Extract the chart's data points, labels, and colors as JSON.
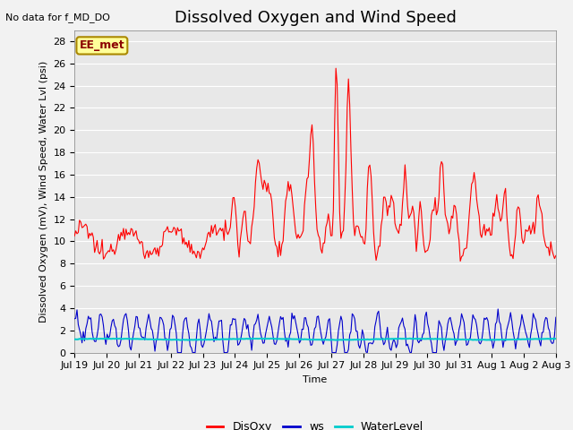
{
  "title": "Dissolved Oxygen and Wind Speed",
  "no_data_text": "No data for f_MD_DO",
  "xlabel": "Time",
  "ylabel": "Dissolved Oxygen (mV), Wind Speed, Water Lvl (psi)",
  "ylim": [
    0,
    29
  ],
  "yticks": [
    0,
    2,
    4,
    6,
    8,
    10,
    12,
    14,
    16,
    18,
    20,
    22,
    24,
    26,
    28
  ],
  "xtick_labels": [
    "Jul 19",
    "Jul 20",
    "Jul 21",
    "Jul 22",
    "Jul 23",
    "Jul 24",
    "Jul 25",
    "Jul 26",
    "Jul 27",
    "Jul 28",
    "Jul 29",
    "Jul 30",
    "Jul 31",
    "Aug 1",
    "Aug 2",
    "Aug 3"
  ],
  "do_color": "#FF0000",
  "ws_color": "#0000CC",
  "wl_color": "#00CCCC",
  "annotation_text": "EE_met",
  "annotation_bg": "#FFFF99",
  "annotation_border": "#AA8800",
  "plot_bg_color": "#E8E8E8",
  "fig_bg_color": "#F2F2F2",
  "legend_items": [
    "DisOxy",
    "ws",
    "WaterLevel"
  ],
  "title_fontsize": 13,
  "label_fontsize": 8,
  "tick_fontsize": 8,
  "grid_color": "#FFFFFF",
  "wl_value": 1.2
}
